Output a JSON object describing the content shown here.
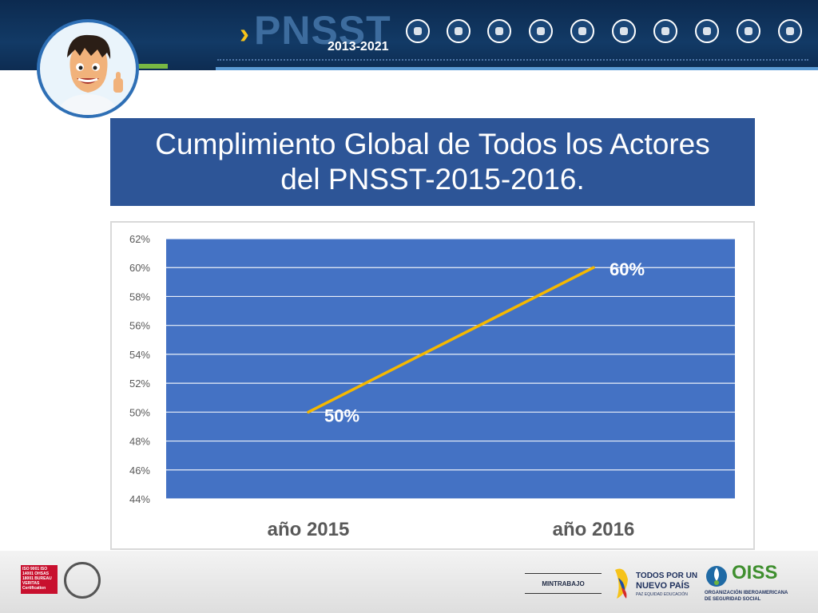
{
  "header": {
    "brand": "PNSST",
    "years": "2013-2021",
    "icons": [
      "industry-icon",
      "factory-icon",
      "truck-icon",
      "building-icon",
      "worker-icon",
      "construction-icon",
      "miner-icon",
      "chef-icon",
      "firefighter-icon",
      "doctor-icon"
    ]
  },
  "title": {
    "line1": "Cumplimiento Global de Todos los Actores",
    "line2": "del PNSST-2015-2016."
  },
  "chart_data": {
    "type": "line",
    "categories": [
      "año 2015",
      "año 2016"
    ],
    "series": [
      {
        "values": [
          50,
          60
        ],
        "color": "#f5b800",
        "labels": [
          "50%",
          "60%"
        ]
      }
    ],
    "ylim": [
      44,
      62
    ],
    "yticks": [
      44,
      46,
      48,
      50,
      52,
      54,
      56,
      58,
      60,
      62
    ],
    "ytick_suffix": "%",
    "grid": true,
    "plot_background": "#4472c4"
  },
  "footer": {
    "bv_text": "ISO 9001 ISO 14001 OHSAS 18001 BUREAU VERITAS Certification",
    "mintrabajo": "MINTRABAJO",
    "todos_line1": "TODOS POR UN",
    "todos_line2": "NUEVO PAÍS",
    "todos_line3": "PAZ EQUIDAD EDUCACIÓN",
    "oiss": "OISS",
    "oiss_sub1": "ORGANIZACIÓN IBEROAMERICANA",
    "oiss_sub2": "DE SEGURIDAD SOCIAL"
  }
}
